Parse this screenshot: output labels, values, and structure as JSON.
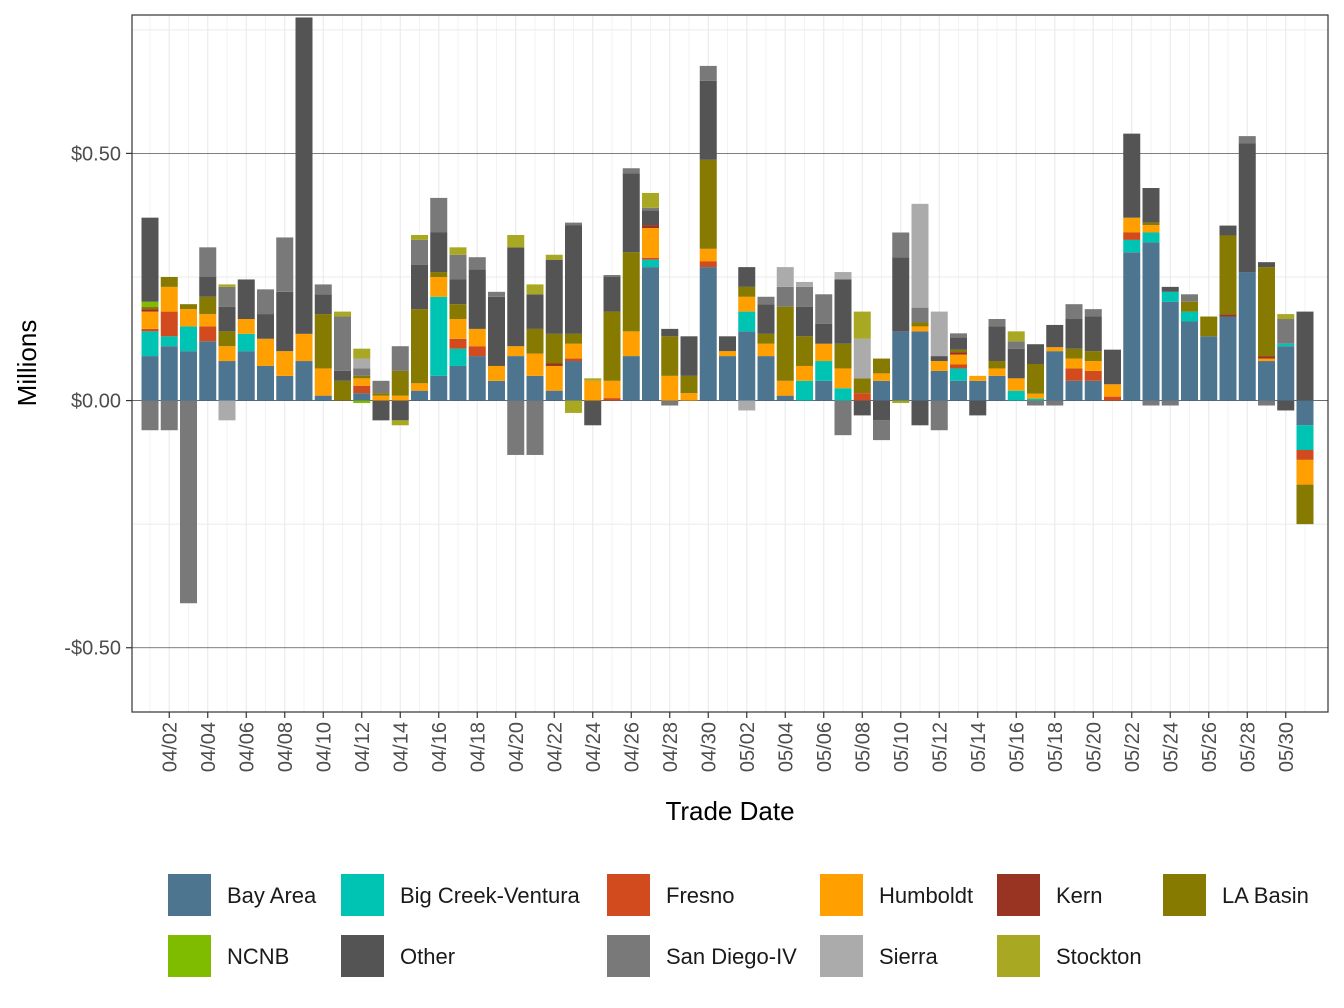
{
  "chart_data": {
    "type": "bar",
    "stacked": true,
    "title": "",
    "xlabel": "Trade Date",
    "ylabel": "Millions",
    "ylim": [
      -0.63,
      0.78
    ],
    "yticks": [
      -0.5,
      0,
      0.5
    ],
    "ytick_labels": [
      "-$0.50",
      "$0.00",
      "$0.50"
    ],
    "grid": true,
    "legend_position": "bottom",
    "x_tick_labels": [
      "04/02",
      "04/04",
      "04/06",
      "04/08",
      "04/10",
      "04/12",
      "04/14",
      "04/16",
      "04/18",
      "04/20",
      "04/22",
      "04/24",
      "04/26",
      "04/28",
      "04/30",
      "05/02",
      "05/04",
      "05/06",
      "05/08",
      "05/10",
      "05/12",
      "05/14",
      "05/16",
      "05/18",
      "05/20",
      "05/22",
      "05/24",
      "05/26",
      "05/28",
      "05/30"
    ],
    "categories": [
      "04/01",
      "04/02",
      "04/03",
      "04/04",
      "04/05",
      "04/06",
      "04/07",
      "04/08",
      "04/09",
      "04/10",
      "04/11",
      "04/12",
      "04/13",
      "04/14",
      "04/15",
      "04/16",
      "04/17",
      "04/18",
      "04/19",
      "04/20",
      "04/21",
      "04/22",
      "04/23",
      "04/24",
      "04/25",
      "04/26",
      "04/27",
      "04/28",
      "04/29",
      "04/30",
      "05/01",
      "05/02",
      "05/03",
      "05/04",
      "05/05",
      "05/06",
      "05/07",
      "05/08",
      "05/09",
      "05/10",
      "05/11",
      "05/12",
      "05/13",
      "05/14",
      "05/15",
      "05/16",
      "05/17",
      "05/18",
      "05/19",
      "05/20",
      "05/21",
      "05/22",
      "05/23",
      "05/24",
      "05/25",
      "05/26",
      "05/27",
      "05/28",
      "05/29",
      "05/30",
      "05/31"
    ],
    "series": [
      {
        "name": "Bay Area",
        "color": "#4e7590",
        "values": [
          0.09,
          0.11,
          0.1,
          0.12,
          0.08,
          0.1,
          0.07,
          0.05,
          0.08,
          0.01,
          0,
          0.015,
          0,
          0,
          0.02,
          0.05,
          0.07,
          0.09,
          0.04,
          0.09,
          0.05,
          0.02,
          0.08,
          0,
          0,
          0.09,
          0.27,
          0,
          0,
          0.27,
          0.09,
          0.14,
          0.09,
          0.01,
          0,
          0.04,
          0,
          0,
          0.04,
          0.14,
          0.14,
          0.06,
          0.04,
          0.04,
          0.05,
          0,
          0,
          0.1,
          0.04,
          0.04,
          0,
          0.3,
          0.32,
          0.2,
          0.16,
          0.13,
          0.17,
          0.26,
          0.08,
          0.11,
          -0.05
        ]
      },
      {
        "name": "Big Creek-Ventura",
        "color": "#00c4b3",
        "values": [
          0.05,
          0.02,
          0.05,
          0,
          0,
          0.035,
          0,
          0,
          0,
          0,
          0,
          0,
          0,
          0,
          0,
          0.16,
          0.035,
          0,
          0,
          0,
          0,
          0,
          0,
          0,
          0,
          0,
          0.015,
          0,
          0,
          0,
          0,
          0.04,
          0,
          0,
          0.04,
          0.04,
          0.025,
          0,
          0,
          0,
          0,
          0,
          0.025,
          0,
          0,
          0.02,
          0.004,
          0,
          0,
          0,
          0,
          0.025,
          0.02,
          0.02,
          0.02,
          0,
          0,
          0,
          0,
          0.005,
          -0.05
        ]
      },
      {
        "name": "Fresno",
        "color": "#d14b1e",
        "values": [
          0.005,
          0.05,
          0,
          0.03,
          0,
          0,
          0,
          0,
          0,
          0,
          0,
          0.015,
          0,
          0,
          0,
          0,
          0.02,
          0.02,
          0,
          0,
          0,
          0,
          0.005,
          0,
          0.005,
          0,
          0.004,
          0,
          0,
          0.012,
          0,
          0,
          0,
          0,
          0,
          0,
          0,
          0.015,
          0,
          0,
          0,
          0,
          0.008,
          0,
          0,
          0,
          0,
          0,
          0.025,
          0.02,
          0.008,
          0.015,
          0,
          0,
          0,
          0,
          0,
          0,
          0,
          0,
          -0.02
        ]
      },
      {
        "name": "Humboldt",
        "color": "#ffa000",
        "values": [
          0.035,
          0.05,
          0.035,
          0.025,
          0.03,
          0.03,
          0.055,
          0.05,
          0.055,
          0.055,
          0,
          0.015,
          0.01,
          0.01,
          0.015,
          0.04,
          0.04,
          0.035,
          0.03,
          0.02,
          0.045,
          0.05,
          0.03,
          0.04,
          0.035,
          0.05,
          0.06,
          0.05,
          0.015,
          0.025,
          0.01,
          0.03,
          0.025,
          0.03,
          0.03,
          0.035,
          0.04,
          0,
          0.015,
          0,
          0.01,
          0.02,
          0.02,
          0.01,
          0.015,
          0.025,
          0.01,
          0.008,
          0.02,
          0.02,
          0.025,
          0.03,
          0.015,
          0,
          0,
          0,
          0,
          0,
          0.005,
          0,
          -0.05
        ]
      },
      {
        "name": "Kern",
        "color": "#993322",
        "values": [
          0.005,
          0,
          0,
          0,
          0,
          0,
          0,
          0,
          0,
          0,
          0,
          0,
          0,
          0,
          0,
          0,
          0,
          0,
          0,
          0,
          0,
          0.005,
          0,
          0,
          0,
          0,
          0.006,
          0,
          0,
          0,
          0,
          0,
          0,
          0,
          0,
          0,
          0,
          0,
          0,
          0,
          0,
          0,
          0.005,
          0,
          0,
          0,
          0,
          0,
          0,
          0,
          0,
          0,
          0,
          0,
          0,
          0,
          0.004,
          0,
          0.005,
          0,
          0
        ]
      },
      {
        "name": "LA Basin",
        "color": "#867a00",
        "values": [
          0.005,
          0.02,
          0.01,
          0.035,
          0.03,
          0,
          0,
          0,
          0,
          0.11,
          0.04,
          0.005,
          0.005,
          0.05,
          0.15,
          0.01,
          0.03,
          0,
          0,
          0,
          0.05,
          0.06,
          0.02,
          0,
          0.14,
          0.16,
          0,
          0.08,
          0.035,
          0.18,
          0,
          0.02,
          0.02,
          0.15,
          0.06,
          0,
          0.05,
          0.03,
          0.03,
          0,
          0.008,
          0,
          0.005,
          0,
          0.015,
          0,
          0.06,
          0,
          0.02,
          0.02,
          0,
          0,
          0.005,
          0,
          0.02,
          0.04,
          0.16,
          0,
          0.18,
          0,
          -0.08
        ]
      },
      {
        "name": "NCNB",
        "color": "#7fbc00",
        "values": [
          0.01,
          0,
          0,
          0,
          0,
          0,
          0,
          0,
          0,
          0,
          0,
          -0.005,
          0,
          0,
          0,
          0,
          0,
          0,
          0,
          0,
          0,
          0,
          0,
          0,
          0,
          0,
          0,
          0,
          0,
          0,
          0,
          0,
          0,
          0,
          0,
          0,
          0,
          0,
          0,
          0,
          0,
          0,
          0,
          0,
          0,
          0,
          0,
          0,
          0,
          0,
          0,
          0,
          0,
          0,
          0,
          0,
          0,
          0,
          0,
          0,
          0
        ]
      },
      {
        "name": "Other",
        "color": "#545454",
        "values": [
          0.17,
          0,
          0,
          0.04,
          0.05,
          0.08,
          0.05,
          0.12,
          0.64,
          0.04,
          0.02,
          0,
          -0.04,
          -0.04,
          0.09,
          0.08,
          0.05,
          0.12,
          0.14,
          0.2,
          0.07,
          0.15,
          0.22,
          -0.05,
          0.07,
          0.16,
          0.03,
          0.015,
          0.08,
          0.16,
          0.03,
          0.04,
          0.06,
          0,
          0.06,
          0.04,
          0.13,
          -0.03,
          -0.04,
          0.15,
          -0.05,
          0.01,
          0.025,
          -0.03,
          0.07,
          0.06,
          0.04,
          0.045,
          0.06,
          0.07,
          0.07,
          0.17,
          0.07,
          0.01,
          0,
          0,
          0.02,
          0.26,
          0.01,
          -0.02,
          0.18
        ]
      },
      {
        "name": "San Diego-IV",
        "color": "#797979",
        "values": [
          -0.06,
          -0.06,
          -0.41,
          0.06,
          0.04,
          0,
          0.05,
          0.11,
          0,
          0.02,
          0.11,
          0.015,
          0.025,
          0.05,
          0.05,
          0.07,
          0.05,
          0.025,
          0.01,
          -0.11,
          -0.11,
          0,
          0.005,
          0,
          0.004,
          0.01,
          0.005,
          -0.01,
          0,
          0.03,
          0,
          0,
          0.015,
          0.04,
          0.04,
          0.06,
          -0.07,
          0,
          -0.04,
          0.05,
          0.03,
          -0.06,
          0.008,
          0,
          0.015,
          0.015,
          -0.01,
          -0.01,
          0.03,
          0.015,
          0,
          0,
          -0.01,
          -0.01,
          0.015,
          0,
          0,
          0.015,
          -0.01,
          0.05,
          0
        ]
      },
      {
        "name": "Sierra",
        "color": "#ababab",
        "values": [
          0,
          0,
          0,
          0,
          -0.04,
          0,
          0,
          0,
          0,
          0,
          0,
          0.02,
          0,
          0,
          0,
          0,
          0,
          0,
          0,
          0,
          0,
          0,
          0,
          0,
          0,
          0,
          0,
          0,
          0,
          0,
          0,
          -0.02,
          0,
          0.04,
          0.01,
          0,
          0.015,
          0.08,
          0,
          0,
          0.21,
          0.09,
          0,
          0,
          0,
          0,
          0,
          0,
          0,
          0,
          0,
          0,
          0,
          0,
          0,
          0,
          0,
          0,
          0,
          0,
          0
        ]
      },
      {
        "name": "Stockton",
        "color": "#a8a823",
        "values": [
          0,
          0,
          0,
          0,
          0.005,
          0,
          0,
          0,
          0,
          0,
          0.01,
          0.02,
          0,
          -0.01,
          0.01,
          0,
          0.015,
          0,
          0,
          0.025,
          0.02,
          0.01,
          -0.025,
          0.005,
          0,
          0,
          0.03,
          0,
          0,
          0,
          0,
          0,
          0,
          0,
          0,
          0,
          0,
          0.055,
          0,
          -0.005,
          0,
          0,
          0,
          0,
          0,
          0.02,
          0,
          0,
          0,
          0,
          0,
          0,
          0,
          0,
          0,
          0,
          0,
          0,
          0,
          0.01,
          0
        ]
      }
    ]
  }
}
